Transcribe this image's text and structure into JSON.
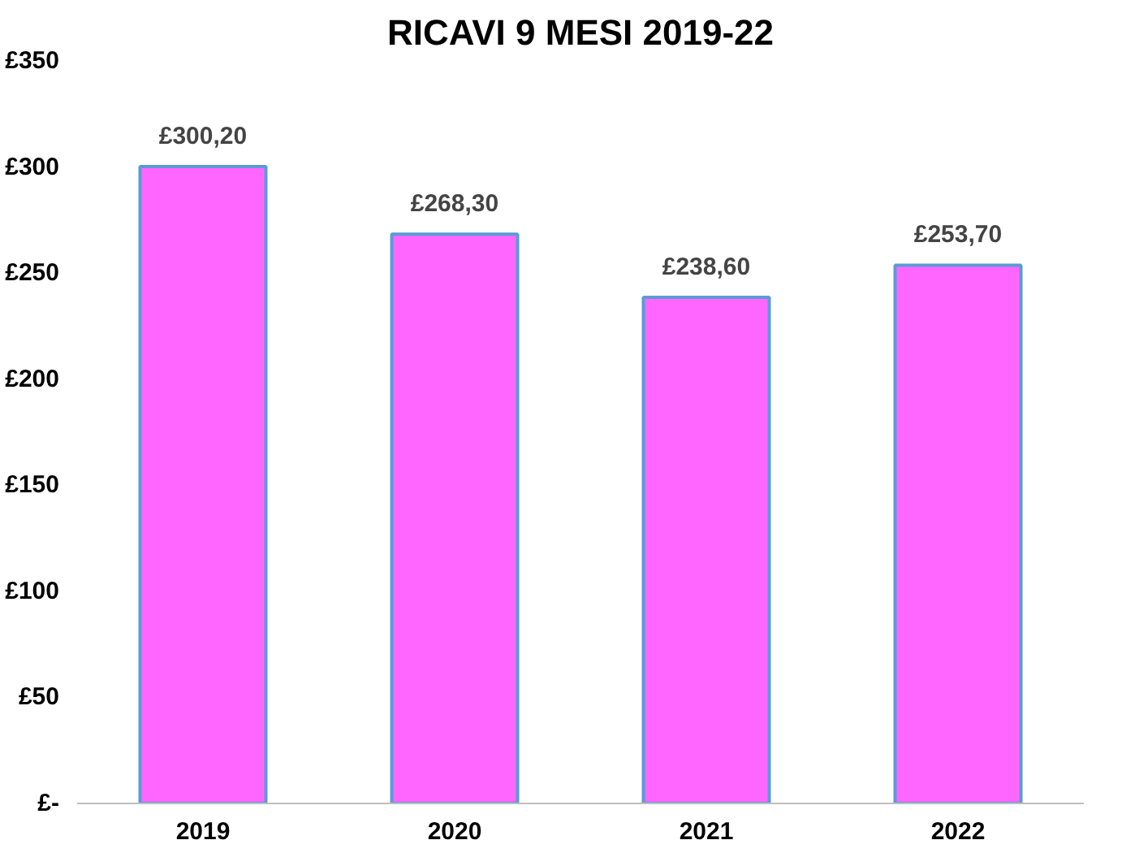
{
  "chart_data": {
    "type": "bar",
    "title": "RICAVI 9 MESI 2019-22",
    "categories": [
      "2019",
      "2020",
      "2021",
      "2022"
    ],
    "values": [
      300.2,
      268.3,
      238.6,
      253.7
    ],
    "value_labels": [
      "£300,20",
      "£268,30",
      "£238,60",
      "£253,70"
    ],
    "color": "#ff66ff",
    "ylim": [
      0,
      350
    ],
    "yticks": [
      {
        "value": 0,
        "label": "£-"
      },
      {
        "value": 50,
        "label": "£50"
      },
      {
        "value": 100,
        "label": "£100"
      },
      {
        "value": 150,
        "label": "£150"
      },
      {
        "value": 200,
        "label": "£200"
      },
      {
        "value": 250,
        "label": "£250"
      },
      {
        "value": 300,
        "label": "£300"
      },
      {
        "value": 350,
        "label": "£350"
      }
    ],
    "grid": false
  }
}
